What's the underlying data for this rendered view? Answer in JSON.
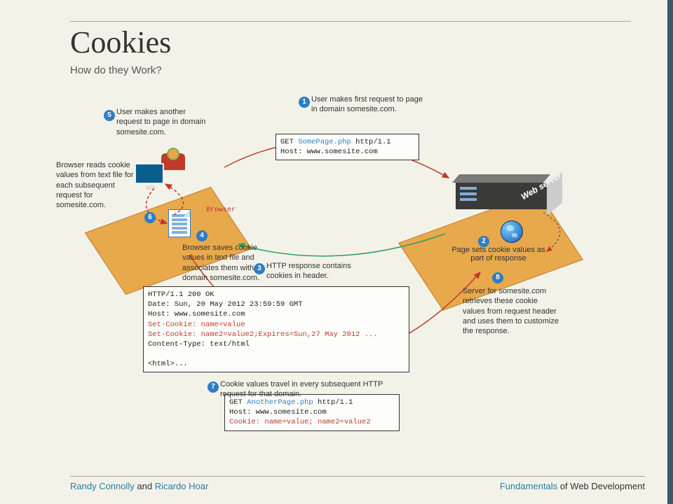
{
  "title": "Cookies",
  "subtitle": "How do they Work?",
  "diagram": {
    "browser_label": "Browser",
    "server_label": "Web server",
    "colors": {
      "tile": "#e8a84c",
      "badge": "#2e7dc5",
      "arrow_request": "#c0392b",
      "arrow_response": "#2ca05a",
      "arrow_dashed": "#c0392b",
      "background": "#f2f2e8",
      "codebox_bg": "#fdfefc",
      "code_keyword": "#2e7dc5",
      "code_cookie": "#c0392b"
    },
    "steps": {
      "s1": {
        "num": "1",
        "text": "User makes first request to page in  domain somesite.com."
      },
      "s2": {
        "num": "2",
        "text": "Page sets cookie values as part of response"
      },
      "s3": {
        "num": "3",
        "text": "HTTP response contains cookies in header."
      },
      "s4": {
        "num": "4",
        "text": "Browser saves cookie values in text file and associates them with domain somesite.com."
      },
      "s5": {
        "num": "5",
        "text": "User makes another request to page in domain somesite.com."
      },
      "s6": {
        "num": "6",
        "text": "Browser reads cookie values from text file for each subsequent request for somesite.com."
      },
      "s7": {
        "num": "7",
        "text": "Cookie values travel in every subsequent HTTP request for that domain."
      },
      "s8": {
        "num": "8",
        "text": "Server for somesite.com retrieves these cookie values from request header and uses them to customize the response."
      }
    },
    "codeboxes": {
      "req1": {
        "lines": [
          "GET SomePage.php http/1.1",
          "Host: www.somesite.com"
        ],
        "kw_ranges": [
          [
            0,
            4,
            16
          ]
        ]
      },
      "resp": {
        "lines": [
          "HTTP/1.1 200 OK",
          "Date: Sun, 20 May 2012 23:59:59 GMT",
          "Host: www.somesite.com",
          "Set-Cookie: name=value",
          "Set-Cookie: name2=value2;Expires=Sun,27 May 2012 ...",
          "Content-Type: text/html",
          "",
          "<html>..."
        ]
      },
      "req2": {
        "lines": [
          "GET AnotherPage.php http/1.1",
          "Host: www.somesite.com",
          "Cookie: name=value; name2=value2"
        ],
        "kw_ranges": [
          [
            0,
            4,
            19
          ]
        ]
      }
    }
  },
  "footer": {
    "author1": "Randy Connolly",
    "join": " and ",
    "author2": "Ricardo Hoar",
    "right_accent": "Fundamentals",
    "right_rest": " of Web Development"
  }
}
